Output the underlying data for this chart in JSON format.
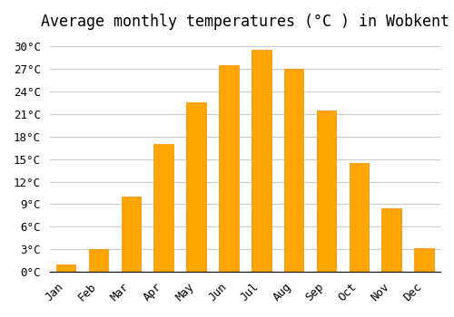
{
  "title": "Average monthly temperatures (°C ) in Wobkent",
  "months": [
    "Jan",
    "Feb",
    "Mar",
    "Apr",
    "May",
    "Jun",
    "Jul",
    "Aug",
    "Sep",
    "Oct",
    "Nov",
    "Dec"
  ],
  "values": [
    1.0,
    3.0,
    10.0,
    17.0,
    22.5,
    27.5,
    29.5,
    27.0,
    21.5,
    14.5,
    8.5,
    3.2
  ],
  "bar_color": "#FFA500",
  "bar_edge_color": "#FF8C00",
  "background_color": "#FFFFFF",
  "plot_bg_color": "#FFFFFF",
  "grid_color": "#CCCCCC",
  "yticks": [
    0,
    3,
    6,
    9,
    12,
    15,
    18,
    21,
    24,
    27,
    30
  ],
  "ylim": [
    0,
    31
  ],
  "title_fontsize": 12,
  "tick_fontsize": 9,
  "font_family": "monospace"
}
